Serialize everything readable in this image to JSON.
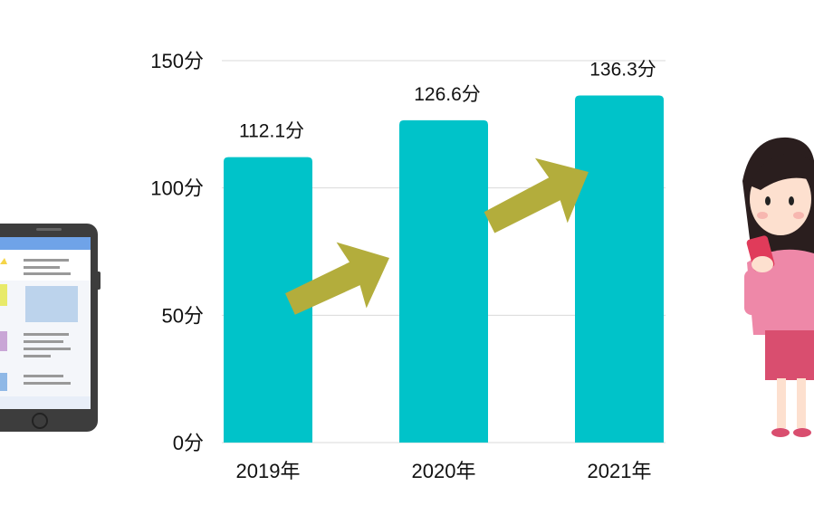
{
  "chart_data": {
    "type": "bar",
    "categories": [
      "2019年",
      "2020年",
      "2021年"
    ],
    "values": [
      112.1,
      126.6,
      136.3
    ],
    "data_labels": [
      "112.1分",
      "126.6分",
      "136.3分"
    ],
    "ylim": [
      0,
      150
    ],
    "yticks": [
      0,
      50,
      100,
      150
    ],
    "ytick_labels": [
      "0分",
      "50分",
      "100分",
      "150分"
    ],
    "grid": true,
    "colors": {
      "bar": "#00c3c9",
      "arrow": "#b3ad3c",
      "grid": "#d9d9d9"
    },
    "decorations": [
      "smartphone-illustration",
      "woman-with-phone-illustration",
      "upward-arrow"
    ]
  }
}
